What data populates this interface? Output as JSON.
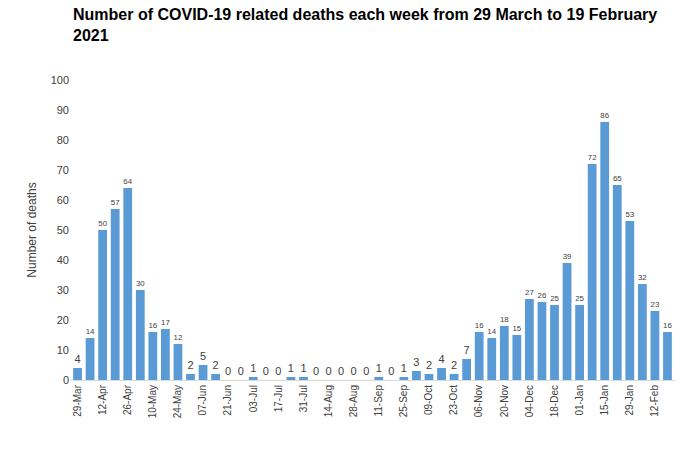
{
  "chart_data": {
    "type": "bar",
    "title": "Number of COVID-19 related deaths each week from 29 March to 19 February 2021",
    "y_label": "Number of deaths",
    "categories": [
      "29-Mar",
      null,
      "12-Apr",
      null,
      "26-Apr",
      null,
      "10-May",
      null,
      "24-May",
      null,
      "07-Jun",
      null,
      "21-Jun",
      null,
      "03-Jul",
      null,
      "17-Jul",
      null,
      "31-Jul",
      null,
      "14-Aug",
      null,
      "28-Aug",
      null,
      "11-Sep",
      null,
      "25-Sep",
      null,
      "09-Oct",
      null,
      "23-Oct",
      null,
      "06-Nov",
      null,
      "20-Nov",
      null,
      "04-Dec",
      null,
      "18-Dec",
      null,
      "01-Jan",
      null,
      "15-Jan",
      null,
      "29-Jan",
      null,
      "12-Feb",
      null
    ],
    "values": [
      4,
      14,
      50,
      57,
      64,
      30,
      16,
      17,
      12,
      2,
      5,
      2,
      0,
      0,
      1,
      0,
      0,
      1,
      1,
      0,
      0,
      0,
      0,
      0,
      1,
      0,
      1,
      3,
      2,
      4,
      2,
      7,
      16,
      14,
      18,
      15,
      27,
      26,
      25,
      39,
      25,
      72,
      86,
      65,
      53,
      32,
      23,
      16
    ],
    "color": "#5b9bd5",
    "ylim": [
      0,
      100
    ],
    "yticks": [
      0,
      10,
      20,
      30,
      40,
      50,
      60,
      70,
      80,
      90,
      100
    ],
    "grid": false,
    "data_labels": true
  }
}
